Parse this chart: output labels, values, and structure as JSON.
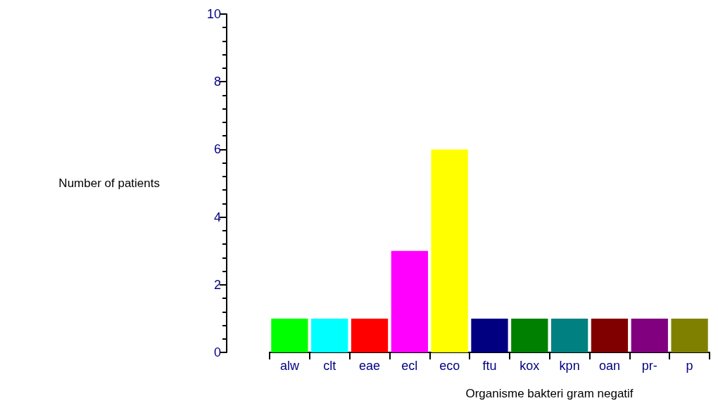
{
  "chart_data": {
    "type": "bar",
    "xlabel": "Organisme bakteri gram negatif",
    "ylabel": "Number of patients",
    "categories": [
      "alw",
      "clt",
      "eae",
      "ecl",
      "eco",
      "ftu",
      "kox",
      "kpn",
      "oan",
      "pr-",
      "p"
    ],
    "values": [
      1,
      1,
      1,
      3,
      6,
      1,
      1,
      1,
      1,
      1,
      1
    ],
    "colors": [
      "#00ff00",
      "#00ffff",
      "#ff0000",
      "#ff00ff",
      "#ffff00",
      "#000080",
      "#008000",
      "#008080",
      "#800000",
      "#800080",
      "#808000"
    ],
    "ylim": [
      0,
      10
    ],
    "yticks": [
      0,
      2,
      4,
      6,
      8,
      10
    ],
    "grid": false
  }
}
